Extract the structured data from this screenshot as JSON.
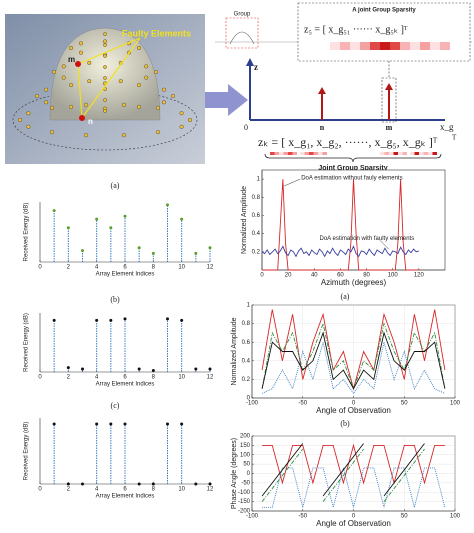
{
  "diagram": {
    "faulty_label": "Faulty Elements",
    "m_label": "m",
    "n_label": "n",
    "group_label": "Group",
    "joint_title": "A joint Group Sparsity",
    "z5_equation": "z₅ = [ x_g₅₁ ······ x_g₅ₖ ]ᵀ",
    "z_axis": "z",
    "xg_axis": "x_g",
    "origin": "0",
    "axis_n": "n",
    "axis_m": "m",
    "axis_T": "T",
    "zk_equation": "zₖ = [ x_g₁, x_g₂, ······, x_g₅, x_gₖ ]ᵀ",
    "joint_caption": "Joint Group Sparsity"
  },
  "captions": [
    "(a)",
    "(a)",
    "(b)",
    "(b)",
    "(c)"
  ],
  "chart_data": [
    {
      "type": "stem",
      "x": [
        1,
        2,
        3,
        4,
        5,
        6,
        7,
        8,
        9,
        10,
        11,
        12
      ],
      "values": [
        1.8,
        1.2,
        0.4,
        1.5,
        1.2,
        1.6,
        0.5,
        0.3,
        2.0,
        1.5,
        0.3,
        0.5
      ],
      "color": "#5aa02c",
      "stem_color": "#3a7fc4",
      "xlabel": "Array Element Indices",
      "ylabel": "Received Energy (dB)",
      "xlim": [
        0,
        12
      ],
      "xticks": [
        0,
        2,
        4,
        6,
        8,
        10,
        12
      ],
      "ylim": [
        0,
        2.1
      ]
    },
    {
      "type": "stem",
      "x": [
        1,
        2,
        3,
        4,
        5,
        6,
        7,
        8,
        9,
        10,
        11,
        12
      ],
      "values": [
        1.75,
        0.15,
        0.1,
        1.75,
        1.75,
        1.8,
        0.1,
        0.05,
        1.8,
        1.75,
        0.1,
        0.1
      ],
      "color": "#111111",
      "stem_color": "#3a7fc4",
      "xlabel": "Array Element Indices",
      "ylabel": "Received Energy (dB)",
      "xlim": [
        0,
        12
      ],
      "xticks": [
        0,
        2,
        4,
        6,
        8,
        10,
        12
      ],
      "ylim": [
        0,
        2
      ]
    },
    {
      "type": "stem",
      "x": [
        1,
        2,
        3,
        4,
        5,
        6,
        7,
        8,
        9,
        10,
        11,
        12
      ],
      "values": [
        1,
        0,
        0,
        1,
        1,
        1,
        0,
        0,
        1,
        1,
        0,
        0
      ],
      "color": "#111111",
      "stem_color": "#3a7fc4",
      "xlabel": "Array Element Indices",
      "ylabel": "Received Energy (dB)",
      "xlim": [
        0,
        12
      ],
      "xticks": [
        0,
        2,
        4,
        6,
        8,
        10,
        12
      ],
      "ylim": [
        0,
        1.1
      ]
    },
    {
      "type": "line",
      "x": [
        0,
        2,
        4,
        6,
        8,
        10,
        12,
        14,
        16,
        18,
        20,
        22,
        24,
        26,
        28,
        30,
        32,
        34,
        36,
        38,
        40,
        42,
        44,
        46,
        48,
        50,
        52,
        54,
        56,
        58,
        60,
        62,
        64,
        66,
        68,
        70,
        72,
        74,
        76,
        78,
        80,
        82,
        84,
        86,
        88,
        90,
        92,
        94,
        96,
        98,
        100,
        102,
        104,
        106,
        108,
        110,
        112,
        114,
        116,
        118,
        120
      ],
      "series": [
        {
          "name": "DoA estimation without fauly elements",
          "color": "#d62728",
          "values": [
            0,
            0,
            0,
            0,
            0,
            0,
            0,
            0.5,
            1,
            0.3,
            0,
            0,
            0,
            0,
            0,
            0,
            0,
            0,
            0,
            0,
            0,
            0,
            0,
            0,
            0,
            0,
            0,
            0,
            0,
            0,
            0,
            0,
            0,
            0,
            0.3,
            1,
            0.4,
            0,
            0,
            0,
            0,
            0,
            0,
            0,
            0,
            0,
            0,
            0,
            0,
            0,
            0,
            0,
            0.3,
            1,
            0.3,
            0,
            0,
            0,
            0,
            0,
            0
          ]
        },
        {
          "name": "DoA estimation with faulty elements",
          "color": "#3b3fa0",
          "values": [
            0.2,
            0.18,
            0.22,
            0.17,
            0.2,
            0.23,
            0.18,
            0.21,
            0.26,
            0.19,
            0.16,
            0.22,
            0.2,
            0.15,
            0.21,
            0.24,
            0.18,
            0.2,
            0.16,
            0.22,
            0.19,
            0.17,
            0.23,
            0.2,
            0.15,
            0.21,
            0.18,
            0.24,
            0.19,
            0.16,
            0.22,
            0.2,
            0.17,
            0.23,
            0.2,
            0.26,
            0.18,
            0.15,
            0.21,
            0.2,
            0.17,
            0.23,
            0.19,
            0.16,
            0.22,
            0.2,
            0.18,
            0.24,
            0.19,
            0.16,
            0.21,
            0.2,
            0.18,
            0.25,
            0.2,
            0.17,
            0.22,
            0.19,
            0.23,
            0.2,
            0.21
          ]
        }
      ],
      "xlabel": "Azimuth (degrees)",
      "ylabel": "Normalized Amplitude",
      "xlim": [
        0,
        140
      ],
      "xticks": [
        0,
        20,
        40,
        60,
        80,
        100,
        120
      ],
      "ylim": [
        0,
        1.1
      ],
      "yticks": [
        0.2,
        0.4,
        0.6,
        0.8,
        1
      ],
      "grid": false
    },
    {
      "type": "line",
      "x": [
        -90,
        -80,
        -70,
        -60,
        -50,
        -40,
        -30,
        -20,
        -10,
        0,
        10,
        20,
        30,
        40,
        50,
        60,
        70,
        80,
        90
      ],
      "series": [
        {
          "color": "#d62728",
          "values": [
            0.3,
            0.95,
            0.4,
            0.9,
            0.2,
            0.6,
            0.9,
            0.3,
            0.5,
            0.1,
            0.5,
            0.3,
            0.9,
            0.6,
            0.2,
            0.9,
            0.4,
            0.95,
            0.3
          ]
        },
        {
          "color": "#2a8a3a",
          "values": [
            0.1,
            0.7,
            0.5,
            0.7,
            0.3,
            0.5,
            0.8,
            0.3,
            0.4,
            0.1,
            0.4,
            0.3,
            0.8,
            0.5,
            0.3,
            0.7,
            0.5,
            0.7,
            0.1
          ]
        },
        {
          "color": "#3a7fc4",
          "values": [
            0.05,
            0.1,
            0.3,
            0.1,
            0.5,
            0.2,
            0.6,
            0.1,
            0.2,
            0.05,
            0.2,
            0.1,
            0.6,
            0.2,
            0.5,
            0.1,
            0.3,
            0.1,
            0.05
          ]
        },
        {
          "color": "#111111",
          "values": [
            0.1,
            0.6,
            0.5,
            0.5,
            0.3,
            0.4,
            0.7,
            0.2,
            0.3,
            0.1,
            0.3,
            0.2,
            0.7,
            0.4,
            0.3,
            0.5,
            0.5,
            0.6,
            0.1
          ]
        }
      ],
      "xlabel": "Angle of Observation",
      "ylabel": "Normalized Amplitude",
      "xlim": [
        -100,
        100
      ],
      "xticks": [
        -100,
        -50,
        0,
        50,
        100
      ],
      "ylim": [
        0,
        1
      ],
      "yticks": [
        0,
        0.2,
        0.4,
        0.6,
        0.8,
        1
      ],
      "grid": true
    },
    {
      "type": "line",
      "x": [
        -90,
        -80,
        -70,
        -60,
        -50,
        -40,
        -30,
        -20,
        -10,
        0,
        10,
        20,
        30,
        40,
        50,
        60,
        70,
        80,
        90
      ],
      "series": [
        {
          "color": "#d62728",
          "values": [
            150,
            150,
            -50,
            150,
            150,
            -50,
            150,
            150,
            -50,
            150,
            -50,
            150,
            150,
            -50,
            150,
            150,
            -50,
            150,
            150
          ]
        },
        {
          "color": "#3a7fc4",
          "values": [
            -180,
            -180,
            30,
            30,
            -180,
            30,
            30,
            -180,
            30,
            -180,
            30,
            30,
            -180,
            30,
            30,
            -180,
            30,
            30,
            -180
          ]
        },
        {
          "color": "#2a8a3a",
          "values": [
            -150,
            -80,
            -10,
            60,
            130,
            null,
            -150,
            -80,
            -10,
            60,
            130,
            null,
            -150,
            -80,
            -10,
            60,
            130,
            null,
            -150
          ]
        },
        {
          "color": "#111111",
          "values": [
            -120,
            -50,
            20,
            90,
            160,
            null,
            -120,
            -50,
            20,
            90,
            160,
            null,
            -120,
            -50,
            20,
            90,
            160,
            null,
            -120
          ]
        }
      ],
      "xlabel": "Angle of Observation",
      "ylabel": "Phase Angle (degrees)",
      "xlim": [
        -100,
        100
      ],
      "xticks": [
        -100,
        -50,
        0,
        50,
        100
      ],
      "ylim": [
        -200,
        200
      ],
      "yticks": [
        -200,
        -150,
        -100,
        -50,
        0,
        50,
        100,
        150,
        200
      ],
      "grid": true
    }
  ]
}
